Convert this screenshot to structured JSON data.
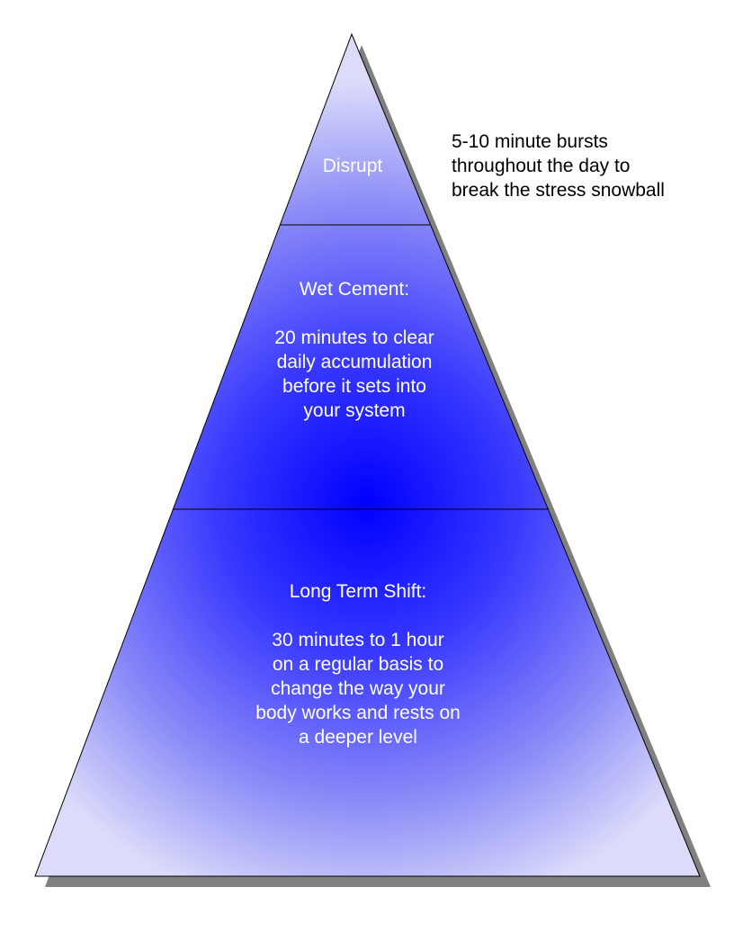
{
  "pyramid": {
    "top_label": "Disrupt",
    "middle_label": "Wet Cement:\n\n20 minutes to clear\ndaily accumulation\nbefore it sets into\nyour system",
    "bottom_label": "Long Term Shift:\n\n30 minutes to 1 hour\non a regular basis to\nchange the way your\nbody works and rests on\na deeper level"
  },
  "side_note": "5-10 minute bursts\nthroughout the day to\nbreak the stress snowball",
  "colors": {
    "fill_center": "#0000ff",
    "fill_edge": "#d8d8fb",
    "shadow": "#808080",
    "outline": "#000000",
    "text": "#ffffff"
  }
}
